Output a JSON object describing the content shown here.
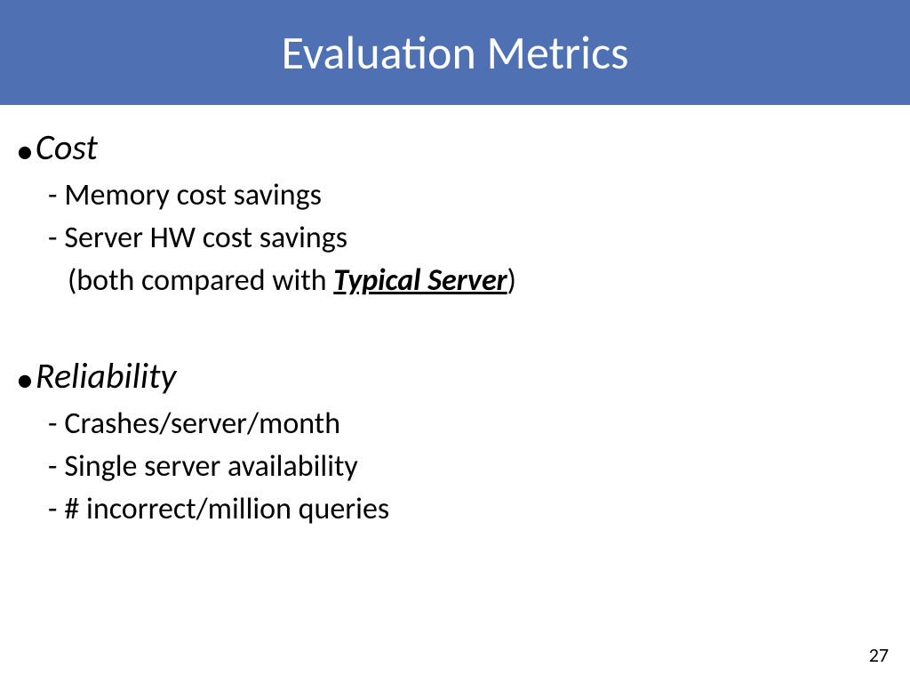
{
  "slide": {
    "title": "Evaluation Metrics",
    "page_number": "27",
    "colors": {
      "title_bar_bg": "#4f71b3",
      "title_text": "#ffffff",
      "body_text": "#000000",
      "background": "#ffffff"
    },
    "typography": {
      "title_fontsize": 52,
      "level1_fontsize": 40,
      "level2_fontsize": 34,
      "page_number_fontsize": 22,
      "font_family": "Calibri"
    },
    "sections": [
      {
        "heading": "Cost",
        "items": [
          {
            "text": "Memory cost savings"
          },
          {
            "text": "Server HW cost savings",
            "continuation_prefix": "(both compared with ",
            "continuation_emphasis": "Typical Server",
            "continuation_suffix": ")"
          }
        ]
      },
      {
        "heading": "Reliability",
        "items": [
          {
            "text": "Crashes/server/month"
          },
          {
            "text": "Single server availability"
          },
          {
            "text": "# incorrect/million queries"
          }
        ]
      }
    ]
  }
}
